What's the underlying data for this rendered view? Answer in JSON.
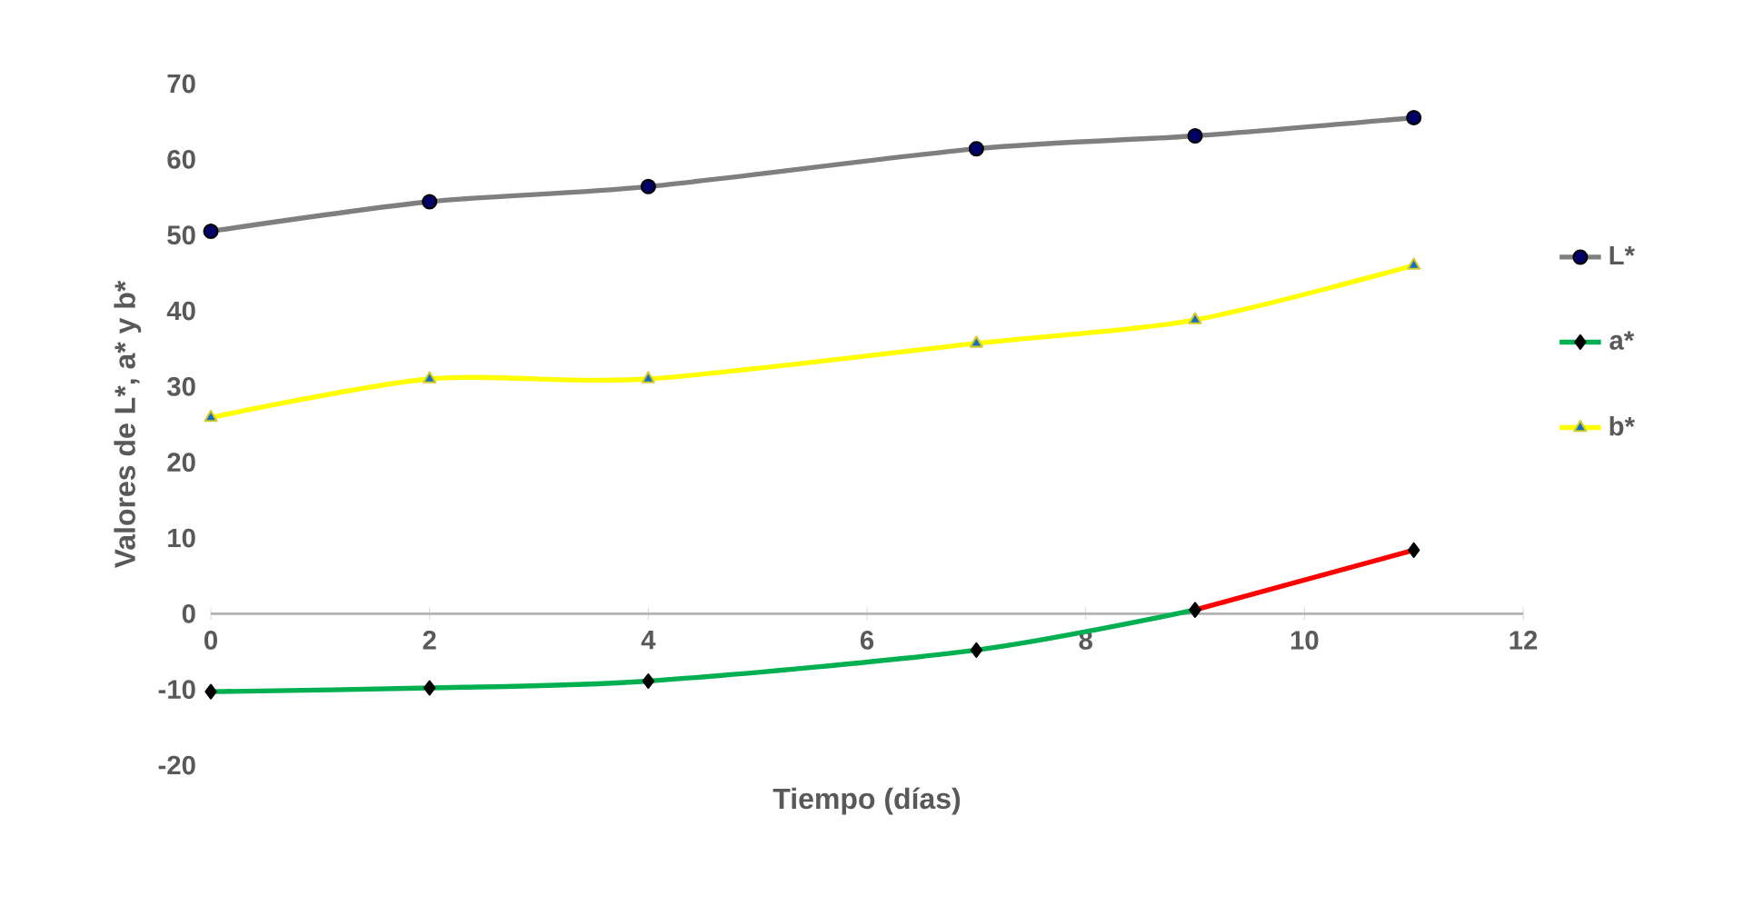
{
  "chart_data": {
    "type": "line",
    "xlabel": "Tiempo (días)",
    "ylabel": "Valores de L*, a* y b*",
    "x": [
      0,
      2,
      4,
      7,
      9,
      11
    ],
    "series": [
      {
        "name": "L*",
        "color": "#7f7f7f",
        "marker": "circle",
        "values": [
          50.5,
          54.4,
          56.4,
          61.4,
          63.1,
          65.5
        ]
      },
      {
        "name": "a*",
        "color": "#00b050",
        "marker": "diamond",
        "values": [
          -10.3,
          -9.8,
          -8.9,
          -4.8,
          0.5,
          null
        ]
      },
      {
        "name": "b*",
        "color": "#ffff00",
        "marker": "triangle",
        "values": [
          25.9,
          31.0,
          31.0,
          35.7,
          38.8,
          46.0
        ]
      },
      {
        "color": "#ff0000",
        "marker": "diamond",
        "values": [
          null,
          null,
          null,
          null,
          0.5,
          8.4
        ]
      }
    ],
    "xlim": [
      0,
      12
    ],
    "xticks": [
      0,
      2,
      4,
      6,
      8,
      10,
      12
    ],
    "ylim": [
      -20,
      70
    ],
    "yticks": [
      -20,
      -10,
      0,
      10,
      20,
      30,
      40,
      50,
      60,
      70
    ],
    "grid": false,
    "legend": "right"
  }
}
